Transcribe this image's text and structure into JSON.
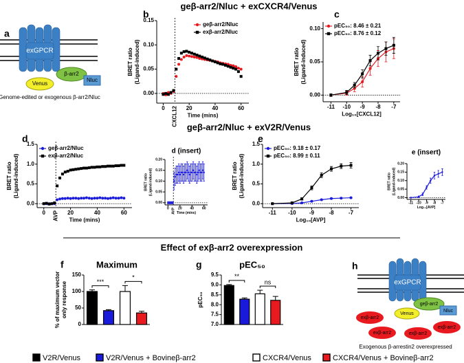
{
  "titles": [
    "geβ-arr2/Nluc + exCXCR4/Venus",
    "geβ-arr2/Nluc + exV2R/Venus",
    "Effect of exβ-arr2 overexpression"
  ],
  "diagram_a": {
    "label": "a",
    "receptor": "exGPCR",
    "arrestin": "β-arr2",
    "nluc": "Nluc",
    "venus": "Venus",
    "caption": "Genome-edited or exogenous β-arr2/Nluc"
  },
  "diagram_h": {
    "label": "h",
    "receptor": "exGPCR",
    "arrestin": "geβ-arr2",
    "nluc": "Nluc",
    "venus": "Venus",
    "extra": [
      "exβ-arr2",
      "exβ-arr2",
      "exβ-arr2",
      "exβ-arr2"
    ],
    "caption": "Exogenous β-arrestin2 overexpressed"
  },
  "legend": [
    {
      "label": "V2R/Venus",
      "color": "#000000"
    },
    {
      "label": "V2R/Venus + Bovineβ-arr2",
      "color": "#1a1adb"
    },
    {
      "label": "CXCR4/Venus",
      "color": "#ffffff"
    },
    {
      "label": "CXCR4/Venus + Bovineβ-arr2",
      "color": "#e8191f"
    }
  ],
  "chart_data": [
    {
      "type": "line",
      "label": "b",
      "ylabel": [
        "BRET ratio",
        "(Ligand-induced)"
      ],
      "xlabel": "Time (mins)",
      "event": {
        "x": 9,
        "label": "CXCL12"
      },
      "legend": "upper right",
      "x": [
        0,
        2,
        4,
        6,
        8,
        10,
        12,
        14,
        16,
        18,
        20,
        22,
        24,
        26,
        28,
        30,
        32,
        34,
        36,
        38,
        40,
        42,
        44,
        46,
        48,
        50,
        52,
        54,
        56,
        58,
        60
      ],
      "series": [
        {
          "name": "geβ-arr2/Nluc",
          "color": "#e8191f",
          "marker": "circle",
          "values": [
            0.0,
            -0.003,
            0.002,
            0.0,
            0.004,
            0.035,
            0.06,
            0.07,
            0.075,
            0.078,
            0.077,
            0.076,
            0.075,
            0.074,
            0.072,
            0.071,
            0.07,
            0.069,
            0.068,
            0.067,
            0.066,
            0.065,
            0.063,
            0.062,
            0.061,
            0.06,
            0.058,
            0.057,
            0.055,
            0.052,
            0.05
          ]
        },
        {
          "name": "exβ-arr2/Nluc",
          "color": "#000000",
          "marker": "square",
          "values": [
            -0.002,
            0.0,
            -0.002,
            0.002,
            0.006,
            0.05,
            0.072,
            0.083,
            0.086,
            0.087,
            0.085,
            0.083,
            0.081,
            0.079,
            0.077,
            0.075,
            0.073,
            0.071,
            0.069,
            0.067,
            0.065,
            0.063,
            0.061,
            0.06,
            0.058,
            0.056,
            0.054,
            0.052,
            0.05,
            0.045,
            0.035
          ]
        }
      ],
      "xlim": [
        -5,
        66
      ],
      "ylim": [
        -0.02,
        0.15
      ],
      "xticks": [
        0,
        20,
        40,
        60
      ],
      "yticks": [
        {
          "value": 0,
          "label": "0.00"
        },
        {
          "value": 0.05,
          "label": "0.05"
        },
        {
          "value": 0.1,
          "label": "0.10"
        },
        {
          "value": 0.15,
          "label": "0.15"
        }
      ]
    },
    {
      "type": "line",
      "label": "c",
      "ylabel": [
        "BRET ratio",
        "(Ligand-induced)"
      ],
      "xlabel": "Log₁₀[CXCL12]",
      "legend": "upper left",
      "connect": true,
      "x": [
        -11,
        -10,
        -9.5,
        -9,
        -8.5,
        -8,
        -7.5,
        -7
      ],
      "series": [
        {
          "name": "pEC₅₀: 8.46 ± 0.21",
          "color": "#e8191f",
          "marker": "circle",
          "values": [
            0.0,
            0.003,
            0.01,
            0.02,
            0.04,
            0.055,
            0.065,
            0.07
          ],
          "errors": [
            0.002,
            0.003,
            0.005,
            0.008,
            0.01,
            0.012,
            0.015,
            0.015
          ]
        },
        {
          "name": "pEC₅₀: 8.76 ± 0.12",
          "color": "#000000",
          "marker": "square",
          "values": [
            0.0,
            0.004,
            0.015,
            0.032,
            0.052,
            0.063,
            0.07,
            0.075
          ],
          "errors": [
            0.002,
            0.003,
            0.004,
            0.006,
            0.008,
            0.01,
            0.01,
            0.012
          ]
        }
      ],
      "xlim": [
        -11.5,
        -6.6
      ],
      "ylim": [
        -0.01,
        0.11
      ],
      "xticks": [
        -11,
        -10,
        -9,
        -8,
        -7
      ],
      "yticks": [
        {
          "value": 0,
          "label": "0.00"
        },
        {
          "value": 0.05,
          "label": "0.05"
        },
        {
          "value": 0.1,
          "label": "0.10"
        }
      ]
    },
    {
      "type": "line",
      "label": "d",
      "ylabel": [
        "BRET ratio",
        "(Ligand-induced)"
      ],
      "xlabel": "Time (mins)",
      "event": {
        "x": 9,
        "label": "AVP"
      },
      "legend": "upper left",
      "x": [
        0,
        2,
        4,
        6,
        8,
        10,
        12,
        14,
        16,
        18,
        20,
        22,
        24,
        26,
        28,
        30,
        32,
        34,
        36,
        38,
        40,
        42,
        44,
        46,
        48,
        50,
        52,
        54,
        56,
        58,
        60
      ],
      "series": [
        {
          "name": "geβ-arr2/Nluc",
          "color": "#1a1adb",
          "marker": "circle",
          "values": [
            0.0,
            0.0,
            0.0,
            0.0,
            0.0,
            0.1,
            0.12,
            0.13,
            0.13,
            0.14,
            0.13,
            0.14,
            0.14,
            0.13,
            0.14,
            0.14,
            0.15,
            0.14,
            0.13,
            0.14,
            0.14,
            0.15,
            0.14,
            0.14,
            0.13,
            0.14,
            0.15,
            0.14,
            0.14,
            0.15,
            0.14
          ]
        },
        {
          "name": "exβ-arr2/Nluc",
          "color": "#000000",
          "marker": "square",
          "values": [
            0.0,
            0.01,
            -0.01,
            0.0,
            0.02,
            0.45,
            0.65,
            0.75,
            0.8,
            0.82,
            0.85,
            0.86,
            0.87,
            0.88,
            0.89,
            0.9,
            0.9,
            0.91,
            0.92,
            0.92,
            0.93,
            0.93,
            0.94,
            0.94,
            0.95,
            0.95,
            0.95,
            0.96,
            0.96,
            0.97,
            0.97
          ]
        }
      ],
      "xlim": [
        -5,
        66
      ],
      "ylim": [
        -0.1,
        1.5
      ],
      "xticks": [
        0,
        20,
        40,
        60
      ],
      "yticks": [
        {
          "value": 0,
          "label": "0.0"
        },
        {
          "value": 0.5,
          "label": "0.5"
        },
        {
          "value": 1,
          "label": "1.0"
        },
        {
          "value": 1.5,
          "label": "1.5"
        }
      ]
    },
    {
      "type": "line",
      "label": "d (insert)",
      "ylabel": [
        "BRET ratio",
        "(Ligand-induced)"
      ],
      "xlabel": "Time (mins)",
      "event": {
        "x": 9,
        "label": "AVP"
      },
      "x": [
        0,
        2,
        4,
        6,
        8,
        10,
        12,
        14,
        16,
        18,
        20,
        22,
        24,
        26,
        28,
        30,
        32,
        34,
        36,
        38,
        40,
        42,
        44,
        46,
        48,
        50,
        52,
        54,
        56,
        58,
        60
      ],
      "series": [
        {
          "name": "geβ-arr2/Nluc",
          "color": "#1a1adb",
          "marker": "circle",
          "values": [
            0.0,
            0.0,
            0.0,
            0.0,
            0.0,
            0.1,
            0.12,
            0.13,
            0.13,
            0.14,
            0.13,
            0.14,
            0.14,
            0.13,
            0.14,
            0.14,
            0.15,
            0.14,
            0.13,
            0.14,
            0.14,
            0.15,
            0.14,
            0.14,
            0.13,
            0.14,
            0.15,
            0.14,
            0.14,
            0.15,
            0.14
          ],
          "errors": [
            0.005,
            0.005,
            0.005,
            0.005,
            0.005,
            0.04,
            0.04,
            0.04,
            0.04,
            0.04,
            0.04,
            0.04,
            0.04,
            0.04,
            0.04,
            0.04,
            0.04,
            0.04,
            0.04,
            0.04,
            0.04,
            0.04,
            0.04,
            0.04,
            0.04,
            0.04,
            0.04,
            0.04,
            0.04,
            0.04,
            0.04
          ]
        }
      ],
      "xlim": [
        -5,
        66
      ],
      "ylim": [
        -0.01,
        0.2
      ],
      "xticks": [
        0,
        20,
        40,
        60
      ],
      "yticks": [
        {
          "value": 0,
          "label": "0.00"
        },
        {
          "value": 0.05,
          "label": "0.05"
        },
        {
          "value": 0.1,
          "label": "0.10"
        },
        {
          "value": 0.15,
          "label": "0.15"
        },
        {
          "value": 0.2,
          "label": "0.20"
        }
      ]
    },
    {
      "type": "line",
      "label": "e",
      "ylabel": [
        "BRET ratio",
        "(Ligand-induced)"
      ],
      "xlabel": "Log₁₀[AVP]",
      "legend": "upper left",
      "connect": true,
      "x": [
        -11,
        -10,
        -9.5,
        -9,
        -8.5,
        -8,
        -7.5,
        -7
      ],
      "series": [
        {
          "name": "pEC₅₀: 9.18 ± 0.17",
          "color": "#1a1adb",
          "marker": "circle",
          "values": [
            0.0,
            0.005,
            0.02,
            0.06,
            0.1,
            0.13,
            0.14,
            0.15
          ],
          "errors": [
            0.005,
            0.005,
            0.01,
            0.01,
            0.01,
            0.01,
            0.01,
            0.01
          ]
        },
        {
          "name": "pEC₅₀: 8.99 ± 0.11",
          "color": "#000000",
          "marker": "square",
          "values": [
            0.0,
            0.02,
            0.12,
            0.4,
            0.72,
            0.88,
            0.95,
            0.97
          ],
          "errors": [
            0.01,
            0.02,
            0.03,
            0.05,
            0.06,
            0.06,
            0.06,
            0.07
          ]
        }
      ],
      "xlim": [
        -11.5,
        -6.6
      ],
      "ylim": [
        -0.1,
        1.5
      ],
      "xticks": [
        -11,
        -10,
        -9,
        -8,
        -7
      ],
      "yticks": [
        {
          "value": 0,
          "label": "0.0"
        },
        {
          "value": 0.5,
          "label": "0.5"
        },
        {
          "value": 1,
          "label": "1.0"
        },
        {
          "value": 1.5,
          "label": "1.5"
        }
      ]
    },
    {
      "type": "line",
      "label": "e (insert)",
      "ylabel": [
        "BRET ratio",
        "(Ligand-induced)"
      ],
      "xlabel": "Log₁₀[AVP]",
      "connect": true,
      "x": [
        -11,
        -10,
        -9.5,
        -9,
        -8.5,
        -8,
        -7.5,
        -7
      ],
      "series": [
        {
          "name": "geβ-arr2/Nluc",
          "color": "#1a1adb",
          "marker": "circle",
          "values": [
            0.0,
            0.005,
            0.02,
            0.06,
            0.1,
            0.13,
            0.14,
            0.15
          ],
          "errors": [
            0.003,
            0.005,
            0.008,
            0.01,
            0.015,
            0.02,
            0.02,
            0.02
          ]
        }
      ],
      "xlim": [
        -11.5,
        -6.6
      ],
      "ylim": [
        -0.01,
        0.2
      ],
      "xticks": [
        -11,
        -10,
        -9,
        -8,
        -7
      ],
      "yticks": [
        {
          "value": 0,
          "label": "0.00"
        },
        {
          "value": 0.05,
          "label": "0.05"
        },
        {
          "value": 0.1,
          "label": "0.10"
        },
        {
          "value": 0.15,
          "label": "0.15"
        },
        {
          "value": 0.2,
          "label": "0.20"
        }
      ]
    },
    {
      "type": "bar",
      "label": "f",
      "title": "Maximum",
      "ylabel": [
        "% of maximum vector",
        "only response"
      ],
      "categories": [
        null,
        null,
        null,
        null
      ],
      "values": [
        100,
        42,
        100,
        35
      ],
      "errors": [
        5,
        3,
        18,
        5
      ],
      "colors": [
        "#000000",
        "#1a1adb",
        "#ffffff",
        "#e8191f"
      ],
      "edgecolor": "#000000",
      "significance": [
        "***",
        "*"
      ],
      "ylim": [
        0,
        150
      ],
      "yticks": [
        0,
        50,
        100,
        150
      ]
    },
    {
      "type": "bar",
      "label": "g",
      "title": "pEC₅₀",
      "ylabel": [
        "pEC₅₀"
      ],
      "categories": [
        null,
        null,
        null,
        null
      ],
      "values": [
        8.97,
        8.28,
        8.55,
        8.22
      ],
      "errors": [
        0.05,
        0.06,
        0.18,
        0.2
      ],
      "colors": [
        "#000000",
        "#1a1adb",
        "#ffffff",
        "#e8191f"
      ],
      "edgecolor": "#000000",
      "significance": [
        "**",
        "ns"
      ],
      "ylim": [
        7,
        9.5
      ],
      "yticks": [
        {
          "value": 7,
          "label": "7.0"
        },
        {
          "value": 7.5,
          "label": "7.5"
        },
        {
          "value": 8,
          "label": "8.0"
        },
        {
          "value": 8.5,
          "label": "8.5"
        },
        {
          "value": 9,
          "label": "9.0"
        },
        {
          "value": 9.5,
          "label": "9.5"
        }
      ]
    }
  ]
}
